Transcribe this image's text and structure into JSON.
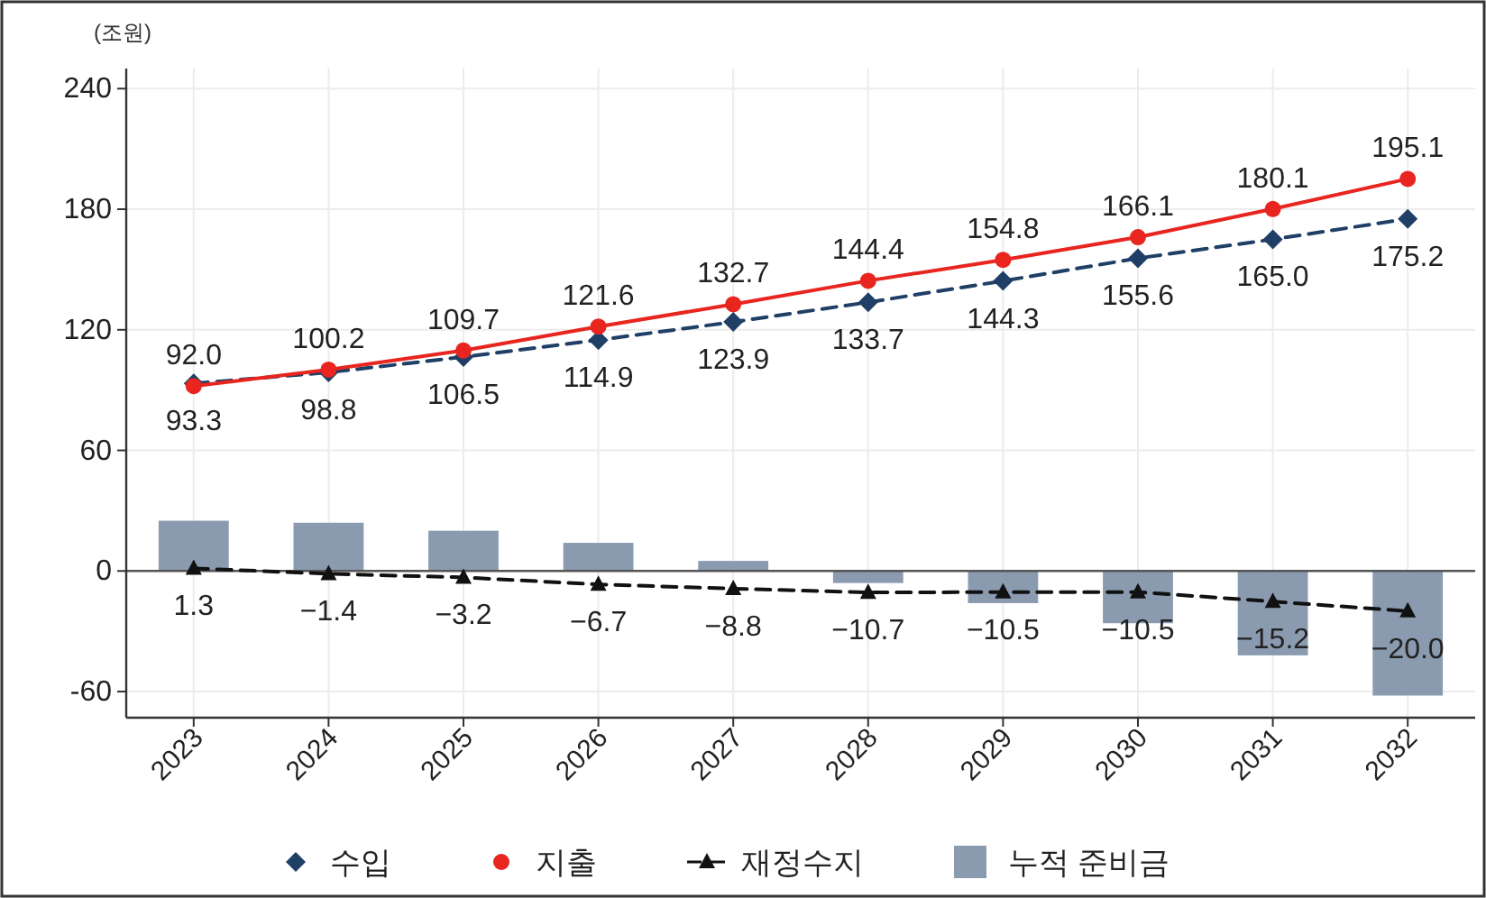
{
  "chart_data": {
    "type": "line",
    "ylabel": "(조원)",
    "categories": [
      "2023",
      "2024",
      "2025",
      "2026",
      "2027",
      "2028",
      "2029",
      "2030",
      "2031",
      "2032"
    ],
    "series": [
      {
        "name": "수입",
        "color": "#1f3f66",
        "marker": "diamond",
        "line_style": "dashed",
        "values": [
          93.3,
          98.8,
          106.5,
          114.9,
          123.9,
          133.7,
          144.3,
          155.6,
          165.0,
          175.2
        ],
        "value_labels": [
          "93.3",
          "98.8",
          "106.5",
          "114.9",
          "123.9",
          "133.7",
          "144.3",
          "155.6",
          "165.0",
          "175.2"
        ]
      },
      {
        "name": "지출",
        "color": "#e8251f",
        "marker": "circle",
        "line_style": "solid",
        "values": [
          92.0,
          100.2,
          109.7,
          121.6,
          132.7,
          144.4,
          154.8,
          166.1,
          180.1,
          195.1
        ],
        "value_labels": [
          "92.0",
          "100.2",
          "109.7",
          "121.6",
          "132.7",
          "144.4",
          "154.8",
          "166.1",
          "180.1",
          "195.1"
        ]
      },
      {
        "name": "재정수지",
        "color": "#111111",
        "marker": "triangle",
        "line_style": "dashed",
        "values": [
          1.3,
          -1.4,
          -3.2,
          -6.7,
          -8.8,
          -10.7,
          -10.5,
          -10.5,
          -15.2,
          -20.0
        ],
        "value_labels": [
          "1.3",
          "−1.4",
          "−3.2",
          "−6.7",
          "−8.8",
          "−10.7",
          "−10.5",
          "−10.5",
          "−15.2",
          "−20.0"
        ]
      },
      {
        "name": "누적 준비금",
        "type": "bar",
        "color": "#8a9bb0",
        "values": [
          25,
          24,
          20,
          14,
          5,
          -6,
          -16,
          -26,
          -42,
          -62
        ]
      }
    ],
    "ylim": [
      -73,
      250
    ],
    "yticks": [
      -60,
      0,
      60,
      120,
      180,
      240
    ],
    "grid": true,
    "legend": "bottom"
  }
}
